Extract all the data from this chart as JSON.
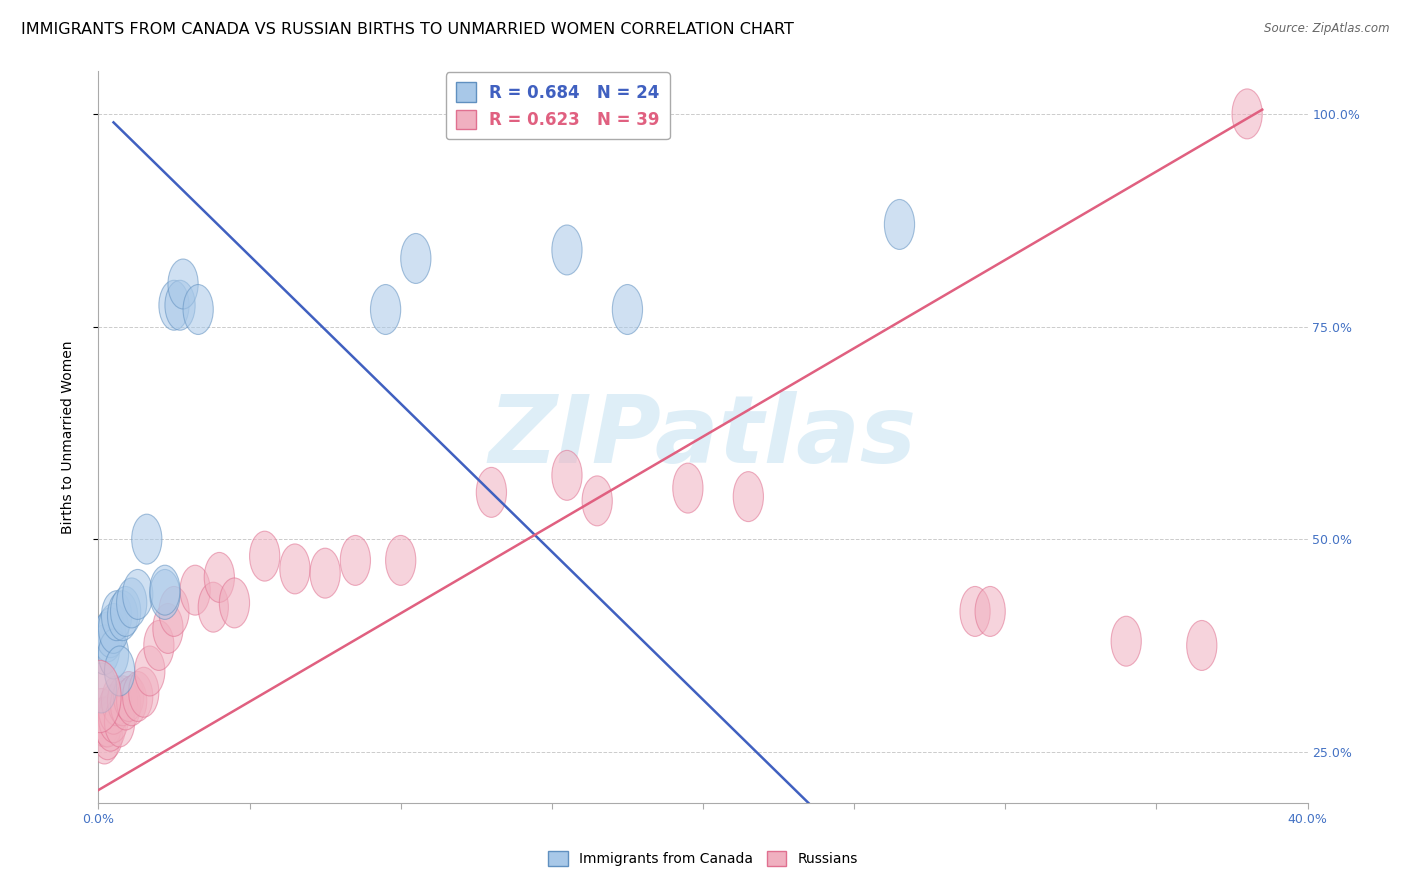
{
  "title": "IMMIGRANTS FROM CANADA VS RUSSIAN BIRTHS TO UNMARRIED WOMEN CORRELATION CHART",
  "source": "Source: ZipAtlas.com",
  "ylabel": "Births to Unmarried Women",
  "legend1_label": "R = 0.684   N = 24",
  "legend2_label": "R = 0.623   N = 39",
  "blue_scatter_x": [
    0.001,
    0.002,
    0.003,
    0.004,
    0.005,
    0.005,
    0.006,
    0.007,
    0.008,
    0.009,
    0.011,
    0.013,
    0.016,
    0.022,
    0.022,
    0.025,
    0.027,
    0.028,
    0.033,
    0.095,
    0.105,
    0.155,
    0.175,
    0.265
  ],
  "blue_scatter_y": [
    0.325,
    0.37,
    0.385,
    0.39,
    0.365,
    0.395,
    0.41,
    0.345,
    0.41,
    0.415,
    0.425,
    0.435,
    0.5,
    0.435,
    0.44,
    0.775,
    0.775,
    0.8,
    0.77,
    0.77,
    0.83,
    0.84,
    0.77,
    0.87
  ],
  "pink_scatter_x": [
    0.001,
    0.002,
    0.002,
    0.003,
    0.003,
    0.004,
    0.005,
    0.005,
    0.006,
    0.007,
    0.008,
    0.009,
    0.01,
    0.011,
    0.013,
    0.015,
    0.017,
    0.02,
    0.023,
    0.025,
    0.032,
    0.038,
    0.04,
    0.045,
    0.055,
    0.065,
    0.075,
    0.085,
    0.1,
    0.13,
    0.155,
    0.165,
    0.195,
    0.215,
    0.29,
    0.295,
    0.34,
    0.365,
    0.38
  ],
  "pink_scatter_y": [
    0.295,
    0.265,
    0.285,
    0.27,
    0.285,
    0.28,
    0.29,
    0.3,
    0.31,
    0.285,
    0.31,
    0.305,
    0.315,
    0.31,
    0.315,
    0.32,
    0.345,
    0.375,
    0.395,
    0.415,
    0.44,
    0.42,
    0.455,
    0.425,
    0.48,
    0.465,
    0.46,
    0.475,
    0.475,
    0.555,
    0.575,
    0.545,
    0.56,
    0.55,
    0.415,
    0.415,
    0.38,
    0.375,
    1.0
  ],
  "blue_line_x": [
    0.005,
    0.265
  ],
  "blue_line_y": [
    0.99,
    0.085
  ],
  "pink_line_x": [
    0.0,
    0.385
  ],
  "pink_line_y": [
    0.205,
    1.005
  ],
  "xlim": [
    0.0,
    0.4
  ],
  "ylim": [
    0.19,
    1.05
  ],
  "xticks": [
    0.0,
    0.05,
    0.1,
    0.15,
    0.2,
    0.25,
    0.3,
    0.35,
    0.4
  ],
  "yticks": [
    0.25,
    0.5,
    0.75,
    1.0
  ],
  "blue_fill": "#a8c8e8",
  "blue_edge": "#6090c0",
  "pink_fill": "#f0b0c0",
  "pink_edge": "#e07090",
  "blue_line_color": "#4060c0",
  "pink_line_color": "#e06080",
  "tick_color": "#4472c4",
  "background_color": "#ffffff",
  "grid_color": "#cccccc",
  "watermark_text": "ZIPatlas",
  "watermark_color": "#d0e8f5"
}
